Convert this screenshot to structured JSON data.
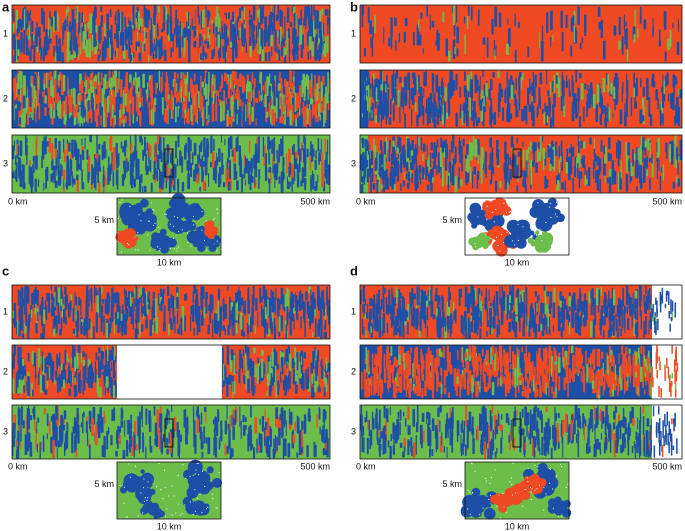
{
  "panels": [
    {
      "label": "a",
      "rows": [
        "1",
        "2",
        "3"
      ],
      "scale_start": "0 km",
      "scale_end": "500 km",
      "inset_height": "5 km",
      "inset_width": "10 km"
    },
    {
      "label": "b",
      "rows": [
        "1",
        "2",
        "3"
      ],
      "scale_start": "0 km",
      "scale_end": "500 km",
      "inset_height": "5 km",
      "inset_width": "10 km"
    },
    {
      "label": "c",
      "rows": [
        "1",
        "2",
        "3"
      ],
      "scale_start": "0 km",
      "scale_end": "500 km",
      "inset_height": "5 km",
      "inset_width": "10 km"
    },
    {
      "label": "d",
      "rows": [
        "1",
        "2",
        "3"
      ],
      "scale_start": "0 km",
      "scale_end": "500 km",
      "inset_height": "5 km",
      "inset_width": "10 km"
    }
  ]
}
